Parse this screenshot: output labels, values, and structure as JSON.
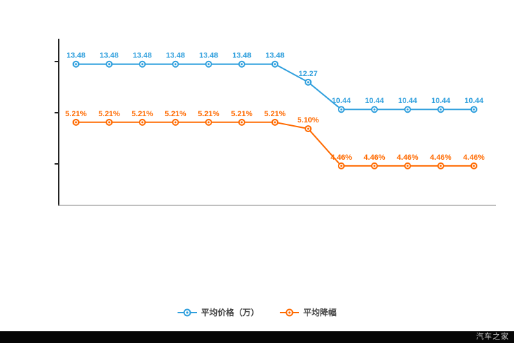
{
  "watermark": "汽车之家",
  "chart_data": {
    "type": "line",
    "x_count": 13,
    "x_labels": [],
    "grid": false,
    "legend_position": "bottom",
    "axis_color": "#222222",
    "baseline_color": "#aaaaaa",
    "series": [
      {
        "name": "平均价格（万）",
        "color": "#2f9fdd",
        "ylim": [
          4,
          15
        ],
        "values": [
          13.48,
          13.48,
          13.48,
          13.48,
          13.48,
          13.48,
          13.48,
          12.27,
          10.44,
          10.44,
          10.44,
          10.44,
          10.44
        ],
        "labels": [
          "13.48",
          "13.48",
          "13.48",
          "13.48",
          "13.48",
          "13.48",
          "13.48",
          "12.27",
          "10.44",
          "10.44",
          "10.44",
          "10.44",
          "10.44"
        ]
      },
      {
        "name": "平均降幅",
        "color": "#ff6a00",
        "ylim": [
          3.78,
          6.6
        ],
        "values": [
          5.21,
          5.21,
          5.21,
          5.21,
          5.21,
          5.21,
          5.21,
          5.1,
          4.46,
          4.46,
          4.46,
          4.46,
          4.46
        ],
        "labels": [
          "5.21%",
          "5.21%",
          "5.21%",
          "5.21%",
          "5.21%",
          "5.21%",
          "5.21%",
          "5.10%",
          "4.46%",
          "4.46%",
          "4.46%",
          "4.46%",
          "4.46%"
        ]
      }
    ]
  }
}
